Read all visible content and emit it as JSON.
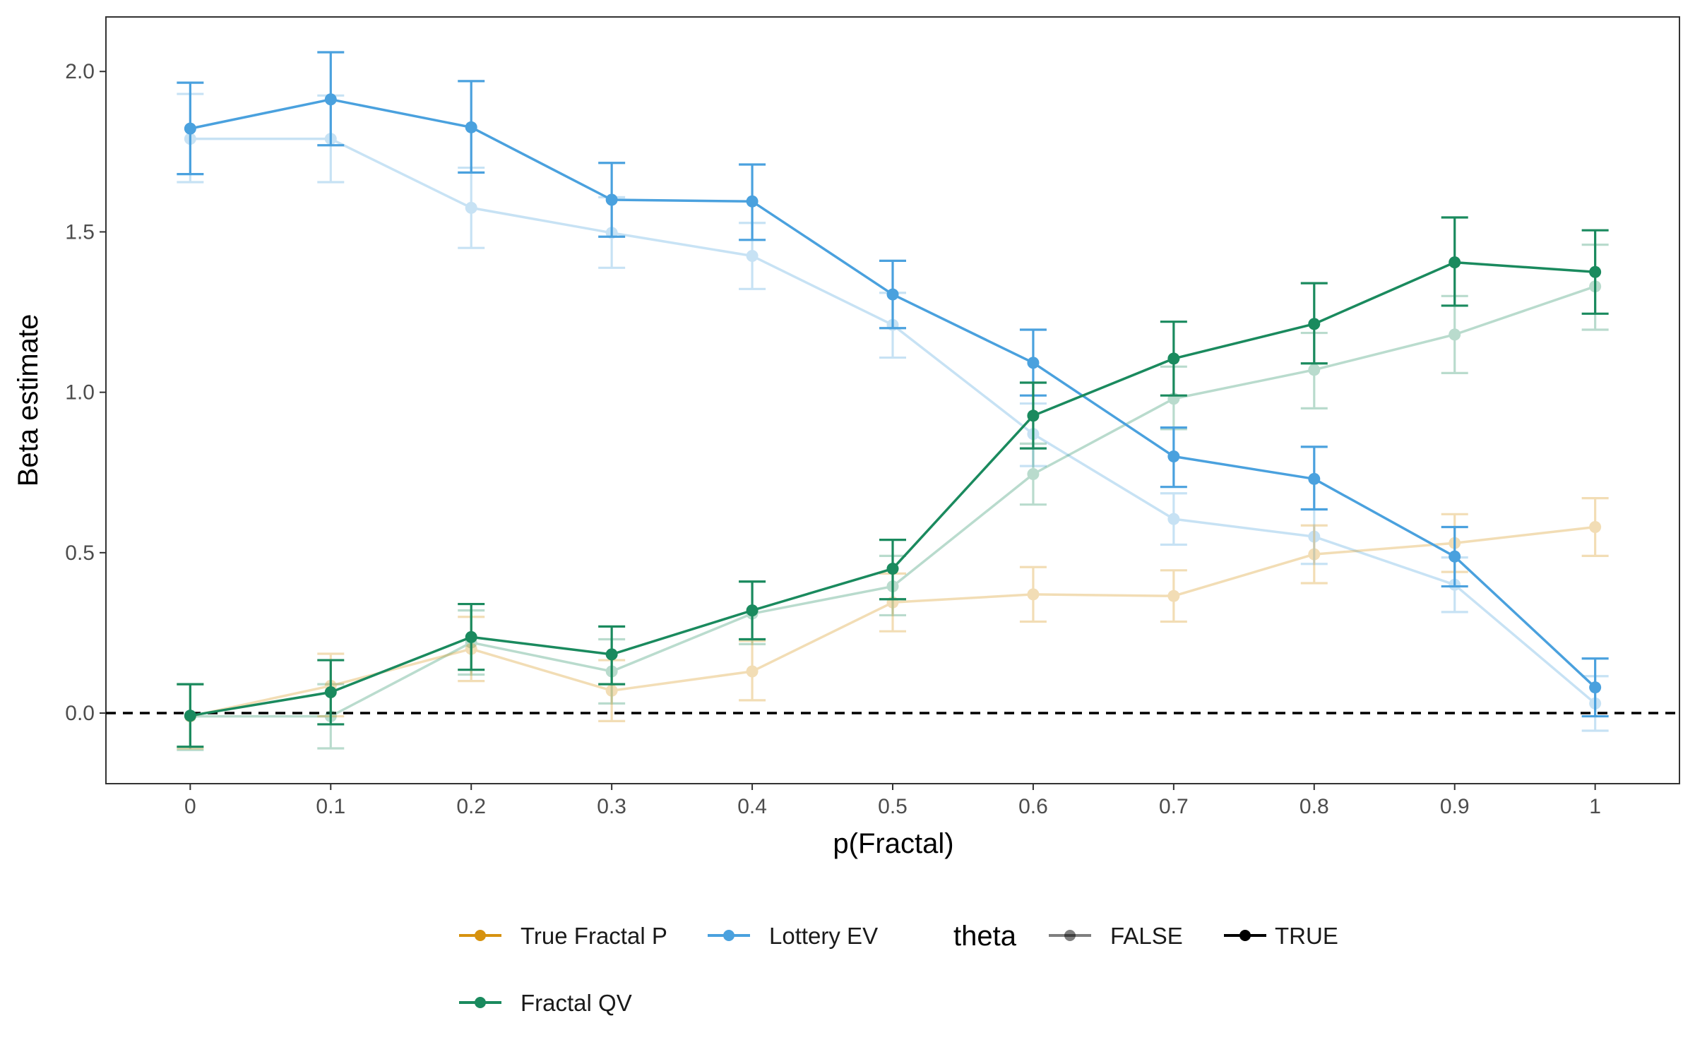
{
  "chart_data": {
    "type": "line",
    "xlabel": "p(Fractal)",
    "ylabel": "Beta estimate",
    "x": [
      0,
      0.1,
      0.2,
      0.3,
      0.4,
      0.5,
      0.6,
      0.7,
      0.8,
      0.9,
      1
    ],
    "x_tick_labels": [
      "0",
      "0.1",
      "0.2",
      "0.3",
      "0.4",
      "0.5",
      "0.6",
      "0.7",
      "0.8",
      "0.9",
      "1"
    ],
    "y_ticks": [
      0.0,
      0.5,
      1.0,
      1.5,
      2.0
    ],
    "y_tick_labels": [
      "0.0",
      "0.5",
      "1.0",
      "1.5",
      "2.0"
    ],
    "ylim": [
      -0.22,
      2.17
    ],
    "xlim": [
      -0.06,
      1.06
    ],
    "reference_line": {
      "y": 0,
      "style": "dashed"
    },
    "grid": false,
    "legend_position": "bottom",
    "legend_labels": {
      "series": [
        "True Fractal P",
        "Lottery EV",
        "Fractal QV"
      ],
      "theta_title": "theta",
      "theta": [
        "FALSE",
        "TRUE"
      ]
    },
    "colors": {
      "True Fractal P": "#D6920F",
      "Lottery EV": "#4AA1DE",
      "Fractal QV": "#1A8A5E",
      "theta_key": "#000000"
    },
    "series": [
      {
        "name": "Lottery EV",
        "theta": "FALSE",
        "values": [
          1.79,
          1.79,
          1.575,
          1.497,
          1.425,
          1.21,
          0.87,
          0.605,
          0.55,
          0.4,
          0.03
        ],
        "lower": [
          1.655,
          1.655,
          1.45,
          1.388,
          1.322,
          1.108,
          0.77,
          0.525,
          0.465,
          0.315,
          -0.055
        ],
        "upper": [
          1.93,
          1.925,
          1.7,
          1.608,
          1.528,
          1.31,
          0.965,
          0.685,
          0.635,
          0.485,
          0.115
        ]
      },
      {
        "name": "Fractal QV",
        "theta": "FALSE",
        "values": [
          -0.01,
          -0.01,
          0.22,
          0.13,
          0.31,
          0.395,
          0.745,
          0.98,
          1.07,
          1.18,
          1.33
        ],
        "lower": [
          -0.115,
          -0.11,
          0.12,
          0.03,
          0.215,
          0.305,
          0.65,
          0.885,
          0.95,
          1.06,
          1.195
        ],
        "upper": [
          0.09,
          0.09,
          0.32,
          0.23,
          0.41,
          0.49,
          0.84,
          1.08,
          1.185,
          1.3,
          1.46
        ]
      },
      {
        "name": "True Fractal P",
        "theta": "FALSE",
        "values": [
          -0.01,
          0.085,
          0.2,
          0.07,
          0.13,
          0.345,
          0.37,
          0.365,
          0.495,
          0.53,
          0.58
        ],
        "lower": [
          -0.11,
          -0.01,
          0.1,
          -0.025,
          0.04,
          0.255,
          0.285,
          0.285,
          0.405,
          0.44,
          0.49
        ],
        "upper": [
          0.09,
          0.185,
          0.3,
          0.165,
          0.225,
          0.435,
          0.455,
          0.445,
          0.585,
          0.62,
          0.67
        ]
      },
      {
        "name": "Lottery EV",
        "theta": "TRUE",
        "values": [
          1.822,
          1.913,
          1.826,
          1.6,
          1.595,
          1.305,
          1.092,
          0.8,
          0.73,
          0.488,
          0.08
        ],
        "lower": [
          1.68,
          1.77,
          1.685,
          1.485,
          1.475,
          1.2,
          0.99,
          0.705,
          0.635,
          0.395,
          -0.01
        ],
        "upper": [
          1.965,
          2.06,
          1.97,
          1.715,
          1.71,
          1.41,
          1.195,
          0.89,
          0.83,
          0.58,
          0.17
        ]
      },
      {
        "name": "Fractal QV",
        "theta": "TRUE",
        "values": [
          -0.008,
          0.065,
          0.237,
          0.183,
          0.32,
          0.45,
          0.927,
          1.105,
          1.213,
          1.405,
          1.375
        ],
        "lower": [
          -0.105,
          -0.035,
          0.135,
          0.09,
          0.23,
          0.355,
          0.825,
          0.99,
          1.09,
          1.27,
          1.245
        ],
        "upper": [
          0.09,
          0.165,
          0.34,
          0.27,
          0.41,
          0.54,
          1.03,
          1.22,
          1.34,
          1.545,
          1.505
        ]
      }
    ]
  }
}
